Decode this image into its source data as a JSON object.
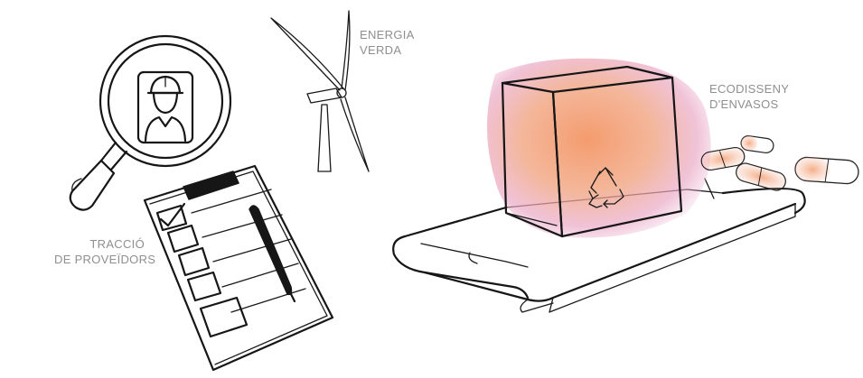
{
  "labels": {
    "energia": [
      "ENERGIA",
      "VERDA"
    ],
    "ecodisseny": [
      "ECODISSENY",
      "D'ENVASOS"
    ],
    "traccio": [
      "TRACCIÓ",
      "DE PROVEÏDORS"
    ]
  },
  "icons": {
    "magnifier": "magnifying-glass-icon",
    "worker": "worker-icon",
    "turbine": "wind-turbine-icon",
    "box": "package-box-icon",
    "recycle": "recycle-icon",
    "conveyor": "conveyor-belt-icon",
    "clipboard": "clipboard-checklist-icon",
    "pen": "pen-icon",
    "capsule": "capsule-icon"
  },
  "colors": {
    "ink": "#161616",
    "label": "#8f8f8f",
    "box_orange": "#f09a6c",
    "box_pink": "#e8a0c0"
  }
}
